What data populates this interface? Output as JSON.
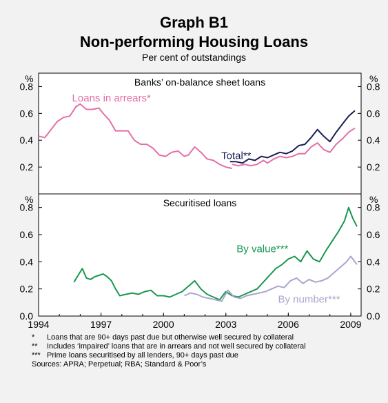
{
  "header": {
    "title_line1": "Graph B1",
    "title_line2": "Non-performing Housing Loans",
    "subtitle": "Per cent of outstandings"
  },
  "colors": {
    "background": "#f2f2f2",
    "plot_background": "#ffffff",
    "arrears": "#e36fa8",
    "total": "#1a1d55",
    "by_value": "#1a9650",
    "by_number": "#a9a6cc"
  },
  "chart_data": [
    {
      "type": "line",
      "panel": "top",
      "title": "Banks’ on-balance sheet loans",
      "ylabel": "%",
      "ylim": [
        0.0,
        0.9
      ],
      "y_ticks": [
        "0.2",
        "0.4",
        "0.6",
        "0.8"
      ],
      "x_ticks": [
        "1994",
        "1997",
        "2000",
        "2003",
        "2006",
        "2009"
      ],
      "grid": false,
      "series": [
        {
          "name": "Loans in arrears*",
          "color": "#e36fa8",
          "x": [
            1994.0,
            1994.3,
            1994.6,
            1994.9,
            1995.2,
            1995.5,
            1995.8,
            1996.0,
            1996.3,
            1996.6,
            1996.9,
            1997.1,
            1997.4,
            1997.7,
            1998.0,
            1998.3,
            1998.6,
            1998.9,
            1999.2,
            1999.5,
            1999.8,
            2000.1,
            2000.4,
            2000.7,
            2001.0,
            2001.2,
            2001.5,
            2001.8,
            2002.1,
            2002.4,
            2002.7,
            2003.0,
            2003.3
          ],
          "y": [
            0.43,
            0.42,
            0.48,
            0.54,
            0.57,
            0.58,
            0.65,
            0.67,
            0.63,
            0.63,
            0.64,
            0.6,
            0.55,
            0.47,
            0.47,
            0.47,
            0.4,
            0.37,
            0.37,
            0.34,
            0.29,
            0.28,
            0.31,
            0.32,
            0.28,
            0.29,
            0.35,
            0.31,
            0.26,
            0.25,
            0.22,
            0.2,
            0.19
          ]
        },
        {
          "name": "",
          "color": "#e36fa8",
          "x": [
            2003.3,
            2003.6,
            2003.9,
            2004.2,
            2004.5,
            2004.8,
            2005.0,
            2005.3,
            2005.6,
            2005.9,
            2006.2,
            2006.5,
            2006.8,
            2007.1,
            2007.4,
            2007.7,
            2008.0,
            2008.3,
            2008.6,
            2008.9,
            2009.2
          ],
          "y": [
            0.22,
            0.21,
            0.22,
            0.21,
            0.22,
            0.25,
            0.23,
            0.26,
            0.28,
            0.27,
            0.28,
            0.3,
            0.3,
            0.35,
            0.38,
            0.33,
            0.31,
            0.37,
            0.41,
            0.46,
            0.49
          ]
        },
        {
          "name": "Total**",
          "color": "#1a1d55",
          "x": [
            2003.2,
            2003.5,
            2003.8,
            2004.1,
            2004.4,
            2004.7,
            2005.0,
            2005.3,
            2005.6,
            2005.9,
            2006.2,
            2006.5,
            2006.8,
            2007.1,
            2007.4,
            2007.7,
            2008.0,
            2008.3,
            2008.6,
            2008.9,
            2009.2
          ],
          "y": [
            0.24,
            0.24,
            0.23,
            0.26,
            0.25,
            0.28,
            0.27,
            0.29,
            0.31,
            0.3,
            0.32,
            0.36,
            0.37,
            0.42,
            0.48,
            0.43,
            0.39,
            0.46,
            0.52,
            0.58,
            0.62
          ]
        }
      ],
      "annotations": [
        "Loans in arrears*",
        "Total**"
      ]
    },
    {
      "type": "line",
      "panel": "bottom",
      "title": "Securitised loans",
      "ylabel": "%",
      "ylim": [
        0.0,
        0.9
      ],
      "y_ticks": [
        "0.0",
        "0.2",
        "0.4",
        "0.6",
        "0.8"
      ],
      "x_ticks": [
        "1994",
        "1997",
        "2000",
        "2003",
        "2006",
        "2009"
      ],
      "grid": false,
      "series": [
        {
          "name": "By value***",
          "color": "#1a9650",
          "x": [
            1995.7,
            1995.9,
            1996.1,
            1996.3,
            1996.5,
            1996.7,
            1996.9,
            1997.1,
            1997.3,
            1997.5,
            1997.7,
            1997.9,
            1998.2,
            1998.5,
            1998.8,
            1999.1,
            1999.4,
            1999.7,
            2000.0,
            2000.3,
            2000.6,
            2000.9,
            2001.2,
            2001.5,
            2001.8,
            2002.1,
            2002.4,
            2002.7,
            2003.0,
            2003.3,
            2003.6,
            2003.9,
            2004.2,
            2004.5,
            2004.8,
            2005.1,
            2005.4,
            2005.7,
            2006.0,
            2006.3,
            2006.6,
            2006.9,
            2007.2,
            2007.5,
            2007.8,
            2008.1,
            2008.4,
            2008.7,
            2008.9,
            2009.1,
            2009.3
          ],
          "y": [
            0.25,
            0.3,
            0.35,
            0.28,
            0.27,
            0.29,
            0.3,
            0.31,
            0.29,
            0.26,
            0.2,
            0.15,
            0.16,
            0.17,
            0.16,
            0.18,
            0.19,
            0.15,
            0.15,
            0.14,
            0.16,
            0.18,
            0.22,
            0.26,
            0.2,
            0.16,
            0.14,
            0.12,
            0.18,
            0.15,
            0.14,
            0.16,
            0.18,
            0.2,
            0.25,
            0.3,
            0.35,
            0.38,
            0.42,
            0.44,
            0.4,
            0.48,
            0.42,
            0.4,
            0.48,
            0.55,
            0.62,
            0.7,
            0.8,
            0.72,
            0.66
          ]
        },
        {
          "name": "By number***",
          "color": "#a9a6cc",
          "x": [
            2001.0,
            2001.3,
            2001.6,
            2001.9,
            2002.2,
            2002.5,
            2002.8,
            2003.1,
            2003.4,
            2003.7,
            2004.0,
            2004.3,
            2004.6,
            2004.9,
            2005.2,
            2005.5,
            2005.8,
            2006.1,
            2006.4,
            2006.7,
            2007.0,
            2007.3,
            2007.6,
            2007.9,
            2008.2,
            2008.5,
            2008.8,
            2009.0,
            2009.3
          ],
          "y": [
            0.15,
            0.17,
            0.16,
            0.14,
            0.13,
            0.12,
            0.11,
            0.19,
            0.14,
            0.13,
            0.15,
            0.16,
            0.17,
            0.18,
            0.2,
            0.22,
            0.21,
            0.26,
            0.28,
            0.24,
            0.27,
            0.25,
            0.26,
            0.28,
            0.32,
            0.36,
            0.4,
            0.44,
            0.38
          ]
        }
      ],
      "annotations": [
        "By value***",
        "By number***"
      ]
    }
  ],
  "notes": [
    {
      "mark": "*",
      "text": "Loans that are 90+ days past due but otherwise well secured by collateral"
    },
    {
      "mark": "**",
      "text": "Includes ‘impaired’ loans that are in arrears and not well secured by collateral"
    },
    {
      "mark": "***",
      "text": "Prime loans securitised by all lenders, 90+ days past due"
    }
  ],
  "sources": "Sources: APRA; Perpetual; RBA; Standard & Poor’s"
}
